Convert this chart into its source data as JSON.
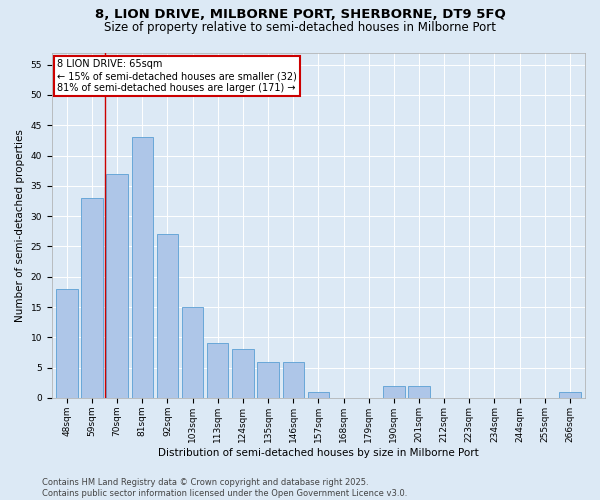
{
  "title1": "8, LION DRIVE, MILBORNE PORT, SHERBORNE, DT9 5FQ",
  "title2": "Size of property relative to semi-detached houses in Milborne Port",
  "xlabel": "Distribution of semi-detached houses by size in Milborne Port",
  "ylabel": "Number of semi-detached properties",
  "categories": [
    "48sqm",
    "59sqm",
    "70sqm",
    "81sqm",
    "92sqm",
    "103sqm",
    "113sqm",
    "124sqm",
    "135sqm",
    "146sqm",
    "157sqm",
    "168sqm",
    "179sqm",
    "190sqm",
    "201sqm",
    "212sqm",
    "223sqm",
    "234sqm",
    "244sqm",
    "255sqm",
    "266sqm"
  ],
  "values": [
    18,
    33,
    37,
    43,
    27,
    15,
    9,
    8,
    6,
    6,
    1,
    0,
    0,
    2,
    2,
    0,
    0,
    0,
    0,
    0,
    1
  ],
  "bar_color": "#aec6e8",
  "bar_edge_color": "#5a9fd4",
  "annotation_title": "8 LION DRIVE: 65sqm",
  "annotation_line1": "← 15% of semi-detached houses are smaller (32)",
  "annotation_line2": "81% of semi-detached houses are larger (171) →",
  "annotation_box_color": "#ffffff",
  "annotation_box_edge": "#cc0000",
  "vline_color": "#cc0000",
  "vline_x_index": 1.5,
  "ylim": [
    0,
    57
  ],
  "yticks": [
    0,
    5,
    10,
    15,
    20,
    25,
    30,
    35,
    40,
    45,
    50,
    55
  ],
  "footer": "Contains HM Land Registry data © Crown copyright and database right 2025.\nContains public sector information licensed under the Open Government Licence v3.0.",
  "bg_color": "#dce9f5",
  "plot_bg_color": "#dce9f5",
  "title_fontsize": 9.5,
  "subtitle_fontsize": 8.5,
  "tick_fontsize": 6.5,
  "ylabel_fontsize": 7.5,
  "xlabel_fontsize": 7.5,
  "footer_fontsize": 6,
  "annot_fontsize": 7
}
